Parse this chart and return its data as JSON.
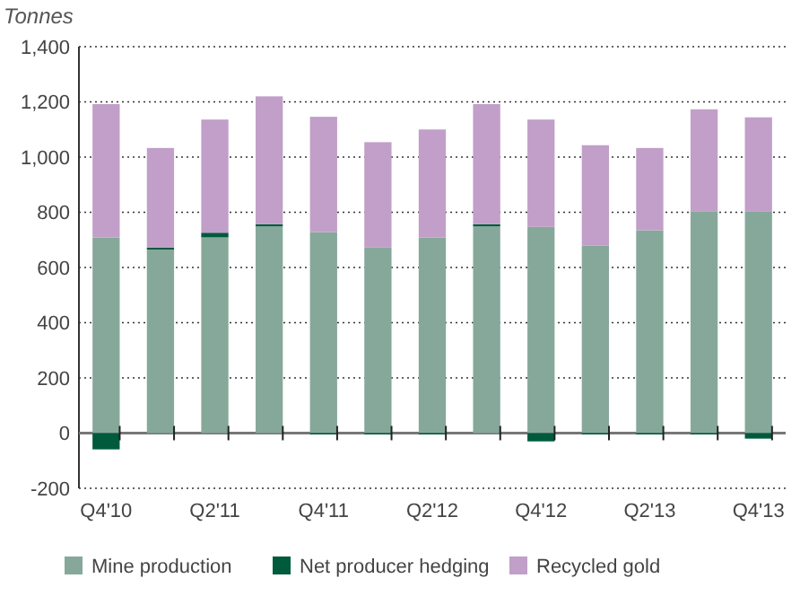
{
  "chart_data": {
    "type": "bar",
    "stacked": true,
    "ylabel": "Tonnes",
    "categories": [
      "Q4'10",
      null,
      "Q2'11",
      null,
      "Q4'11",
      null,
      "Q2'12",
      null,
      "Q4'12",
      null,
      "Q2'13",
      null,
      "Q4'13"
    ],
    "series": [
      {
        "name": "Mine production",
        "color": "#86a89a",
        "values": [
          709,
          665,
          709,
          749,
          728,
          672,
          709,
          749,
          747,
          680,
          735,
          802,
          802
        ]
      },
      {
        "name": "Net producer hedging",
        "color": "#005a3c",
        "values": [
          -59,
          7,
          17,
          8,
          -5,
          -5,
          -5,
          8,
          -30,
          -5,
          -5,
          -5,
          -20
        ]
      },
      {
        "name": "Recycled gold",
        "color": "#c19fc9",
        "values": [
          483,
          361,
          410,
          463,
          418,
          382,
          391,
          435,
          389,
          363,
          298,
          371,
          342
        ]
      }
    ],
    "ylim": [
      -200,
      1400
    ],
    "yticks": [
      -200,
      0,
      200,
      400,
      600,
      800,
      {
        "value": 1000,
        "label": "1,000"
      },
      {
        "value": 1200,
        "label": "1,200"
      },
      {
        "value": 1400,
        "label": "1,400"
      }
    ],
    "grid": "y",
    "legend": "bottom"
  }
}
